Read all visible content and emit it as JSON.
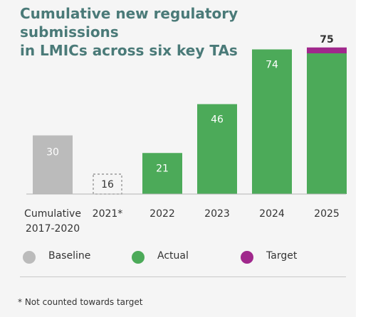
{
  "title_line1": "Cumulative new regulatory submissions",
  "title_line2": "in LMICs across six key TAs",
  "chart_data": {
    "type": "bar",
    "categories": [
      "Cumulative\n2017-2020",
      "2021*",
      "2022",
      "2023",
      "2024",
      "2025"
    ],
    "values": [
      30,
      16,
      21,
      46,
      74,
      75
    ],
    "bar_kinds": [
      "Baseline",
      "Not counted",
      "Actual",
      "Actual",
      "Actual",
      "Actual+Target"
    ],
    "value_labels": [
      "30",
      "16",
      "21",
      "46",
      "74",
      "75"
    ],
    "target_segment": {
      "category": "2025",
      "actual": 72,
      "target": 75
    },
    "ylim": [
      0,
      80
    ],
    "grid": false,
    "legend_placement": "bottom"
  },
  "legend": [
    {
      "label": "Baseline",
      "color": "#bbbbbb"
    },
    {
      "label": "Actual",
      "color": "#4caa59"
    },
    {
      "label": "Target",
      "color": "#a0288c"
    }
  ],
  "colors": {
    "baseline": "#bbbbbb",
    "actual": "#4caa59",
    "target": "#a0288c",
    "dashed_outline": "#999999",
    "title": "#4a7a78"
  },
  "footnote": "* Not counted towards target"
}
